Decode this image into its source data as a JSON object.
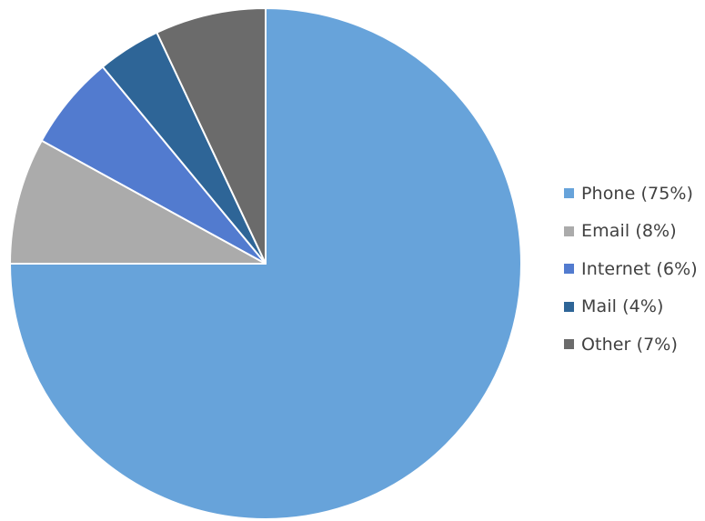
{
  "chart_data": {
    "type": "pie",
    "start": "12 o'clock",
    "direction": "clockwise",
    "slices": [
      {
        "label": "Phone (75%)",
        "value": 75,
        "color": "#67A3DA"
      },
      {
        "label": "Email (8%)",
        "value": 8,
        "color": "#ABABAB"
      },
      {
        "label": "Internet (6%)",
        "value": 6,
        "color": "#527BCF"
      },
      {
        "label": "Mail (4%)",
        "value": 4,
        "color": "#2E6597"
      },
      {
        "label": "Other (7%)",
        "value": 7,
        "color": "#6B6B6B"
      }
    ],
    "legend": "right"
  }
}
